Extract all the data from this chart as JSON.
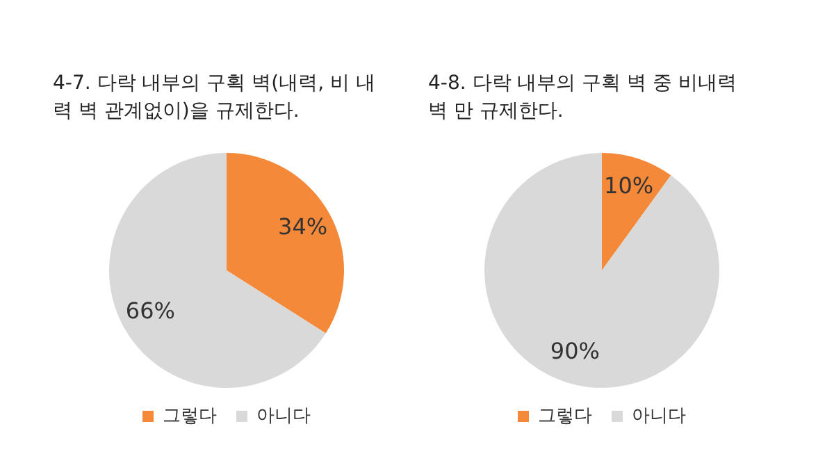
{
  "chart_data": [
    {
      "type": "pie",
      "title": "4-7.  다락 내부의 구획 벽(내력, 비 내력 벽 관계없이)을 규제한다.",
      "categories": [
        "그렇다",
        "아니다"
      ],
      "values": [
        34,
        66
      ],
      "colors": [
        "#f5893a",
        "#d9d9d9"
      ],
      "value_labels": [
        "34%",
        "66%"
      ],
      "legend": "bottom"
    },
    {
      "type": "pie",
      "title": "4-8.  다락 내부의 구획 벽 중 비내력벽 만 규제한다.",
      "categories": [
        "그렇다",
        "아니다"
      ],
      "values": [
        10,
        90
      ],
      "colors": [
        "#f5893a",
        "#d9d9d9"
      ],
      "value_labels": [
        "10%",
        "90%"
      ],
      "legend": "bottom"
    }
  ]
}
